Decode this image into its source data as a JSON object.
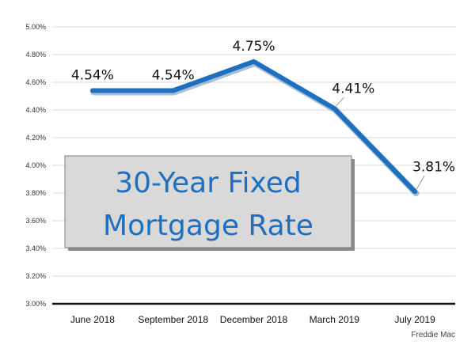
{
  "chart_data": {
    "type": "line",
    "title_lines": [
      "30-Year Fixed",
      "Mortgage Rate"
    ],
    "categories": [
      "June 2018",
      "September 2018",
      "December 2018",
      "March 2019",
      "July 2019"
    ],
    "values": [
      4.54,
      4.54,
      4.75,
      4.41,
      3.81
    ],
    "data_labels": [
      "4.54%",
      "4.54%",
      "4.75%",
      "4.41%",
      "3.81%"
    ],
    "y_ticks": [
      "3.00%",
      "3.20%",
      "3.40%",
      "3.60%",
      "3.80%",
      "4.00%",
      "4.20%",
      "4.40%",
      "4.60%",
      "4.80%",
      "5.00%"
    ],
    "ylim": [
      3.0,
      5.0
    ],
    "grid": true,
    "line_color": "#1f6fc0",
    "source": "Freddie Mac"
  }
}
